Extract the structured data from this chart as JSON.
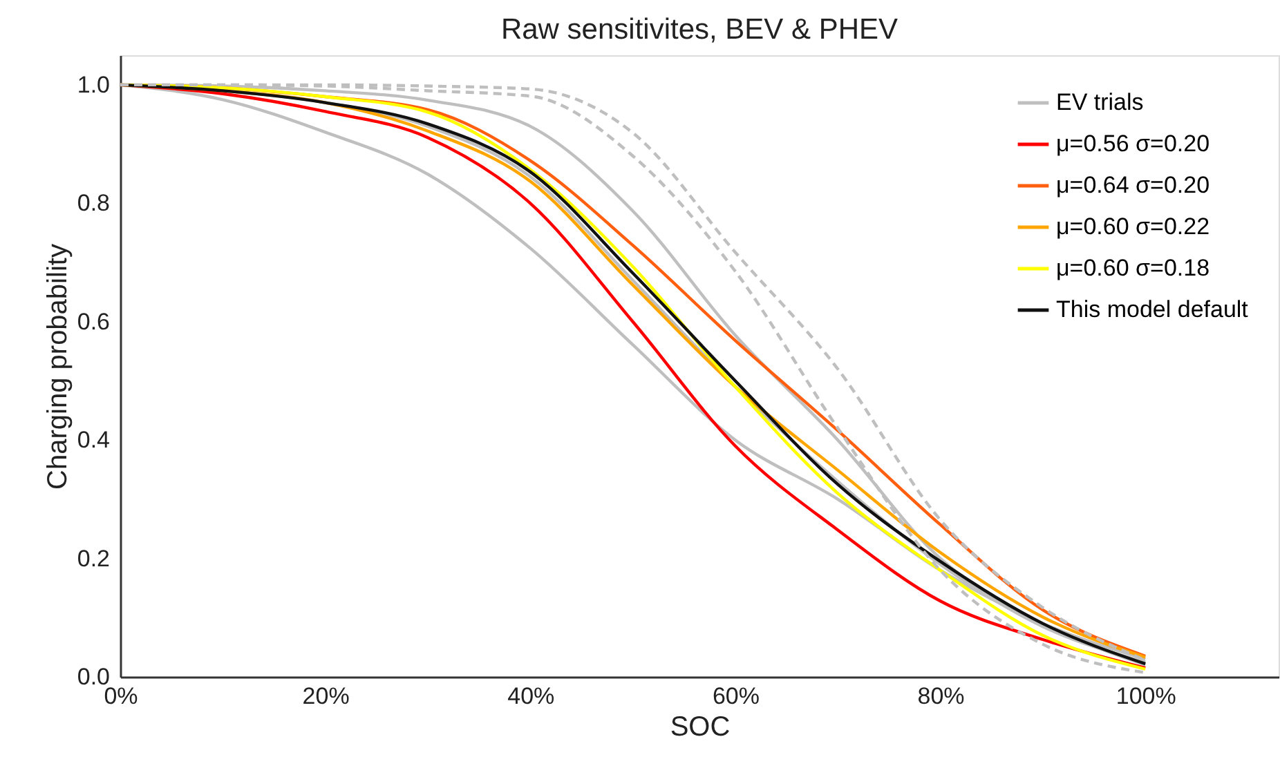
{
  "chart_data": {
    "type": "line",
    "title": "Raw sensitivites, BEV & PHEV",
    "xlabel": "SOC",
    "ylabel": "Charging probability",
    "x": [
      0,
      0.1,
      0.2,
      0.3,
      0.4,
      0.5,
      0.6,
      0.7,
      0.8,
      0.9,
      1.0
    ],
    "xlim": [
      0,
      1.13
    ],
    "ylim": [
      0,
      1.05
    ],
    "xticks": [
      {
        "value": 0,
        "label": "0%"
      },
      {
        "value": 0.2,
        "label": "20%"
      },
      {
        "value": 0.4,
        "label": "40%"
      },
      {
        "value": 0.6,
        "label": "60%"
      },
      {
        "value": 0.8,
        "label": "80%"
      },
      {
        "value": 1.0,
        "label": "100%"
      }
    ],
    "yticks": [
      {
        "value": 0,
        "label": "0.0"
      },
      {
        "value": 0.2,
        "label": "0.2"
      },
      {
        "value": 0.4,
        "label": "0.4"
      },
      {
        "value": 0.6,
        "label": "0.6"
      },
      {
        "value": 0.8,
        "label": "0.8"
      },
      {
        "value": 1.0,
        "label": "1.0"
      }
    ],
    "grid": false,
    "legend": "top right",
    "marker": "none",
    "series": [
      {
        "name": "EV trials",
        "color": "#bfbfbf",
        "line_style": "solid",
        "values": [
          1.0,
          0.975,
          0.92,
          0.849,
          0.724,
          0.561,
          0.4,
          0.3,
          0.18,
          0.09,
          0.03
        ]
      },
      {
        "color": "#bfbfbf",
        "line_style": "solid",
        "values": [
          1.0,
          0.998,
          0.99,
          0.974,
          0.93,
          0.787,
          0.577,
          0.4,
          0.2,
          0.09,
          0.02
        ]
      },
      {
        "color": "#bfbfbf",
        "line_style": "solid",
        "values": [
          1.0,
          0.99,
          0.97,
          0.93,
          0.845,
          0.67,
          0.49,
          0.33,
          0.19,
          0.085,
          0.025
        ]
      },
      {
        "color": "#bfbfbf",
        "line_style": "dashed",
        "values": [
          1.0,
          1.0,
          1.0,
          0.998,
          0.993,
          0.919,
          0.717,
          0.52,
          0.265,
          0.117,
          0.028
        ]
      },
      {
        "color": "#bfbfbf",
        "line_style": "dashed",
        "values": [
          1.0,
          1.0,
          0.998,
          0.99,
          0.981,
          0.88,
          0.685,
          0.42,
          0.18,
          0.055,
          0.007
        ]
      },
      {
        "name": "μ=0.56  σ=0.20",
        "color": "#ff0000",
        "line_style": "solid",
        "values": [
          1.0,
          0.985,
          0.955,
          0.911,
          0.8,
          0.6,
          0.39,
          0.248,
          0.128,
          0.063,
          0.015
        ]
      },
      {
        "name": "μ=0.64  σ=0.20",
        "color": "#ff5f0f",
        "line_style": "solid",
        "values": [
          1.0,
          0.995,
          0.98,
          0.958,
          0.872,
          0.729,
          0.568,
          0.416,
          0.257,
          0.113,
          0.035
        ]
      },
      {
        "name": "μ=0.60  σ=0.22",
        "color": "#ffa500",
        "line_style": "solid",
        "values": [
          1.0,
          0.99,
          0.97,
          0.922,
          0.837,
          0.662,
          0.49,
          0.349,
          0.21,
          0.101,
          0.033
        ]
      },
      {
        "name": "μ=0.60  σ=0.18",
        "color": "#ffff00",
        "line_style": "solid",
        "values": [
          1.0,
          0.995,
          0.98,
          0.954,
          0.857,
          0.693,
          0.49,
          0.31,
          0.18,
          0.07,
          0.013
        ]
      },
      {
        "name": "This model default",
        "color": "#111111",
        "line_style": "solid",
        "values": [
          1.0,
          0.99,
          0.97,
          0.934,
          0.853,
          0.682,
          0.5,
          0.325,
          0.195,
          0.09,
          0.022
        ]
      }
    ]
  }
}
